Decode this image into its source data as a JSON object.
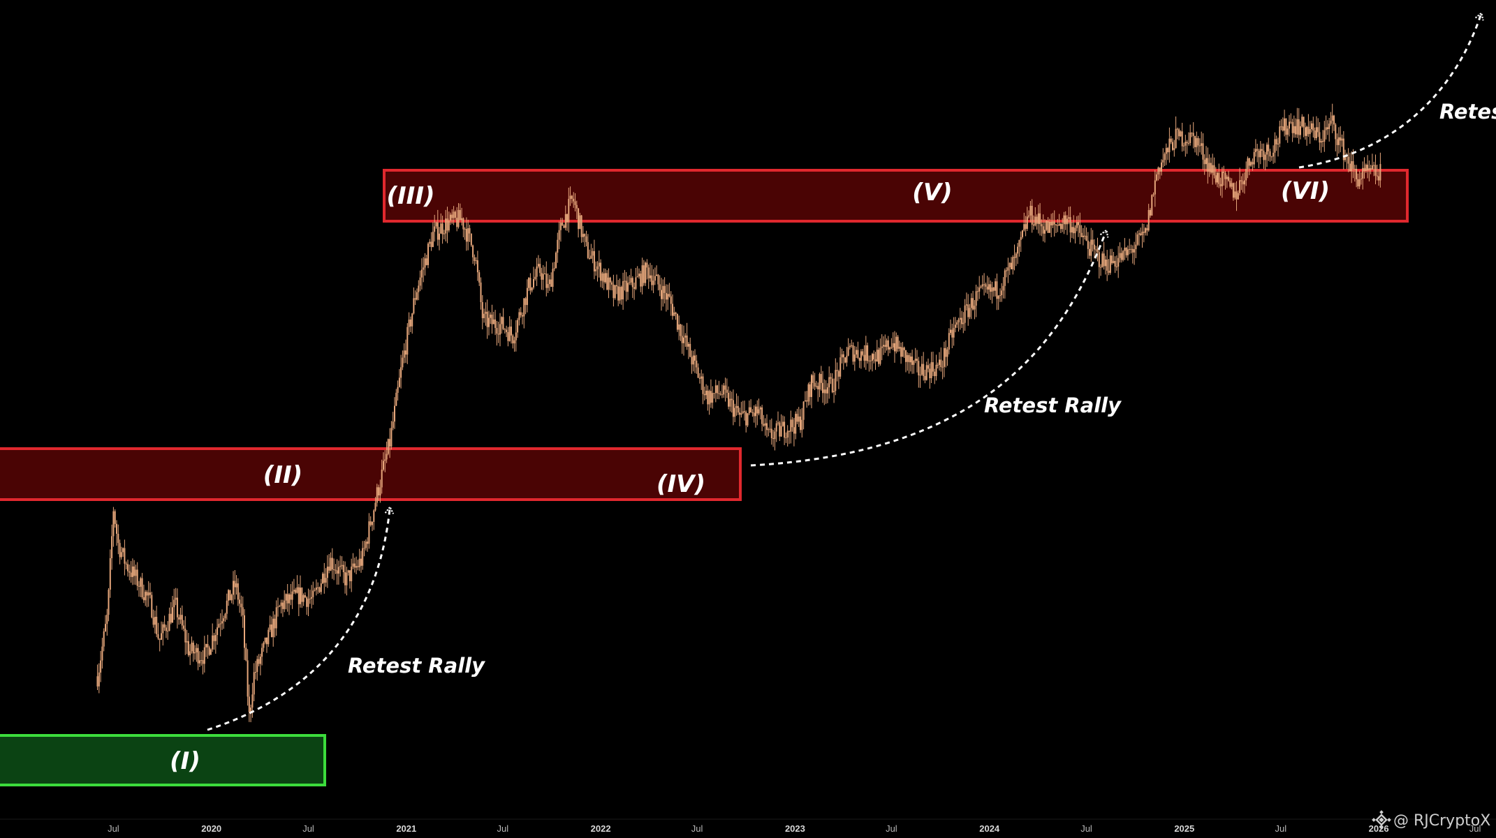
{
  "chart_data": {
    "type": "candlestick",
    "title": "",
    "xlabel": "",
    "ylabel": "",
    "colors": {
      "background": "#000000",
      "candle": "#e8a87c",
      "resistance_zone": "#e0282e",
      "support_zone": "#3cdc3c",
      "text": "#ffffff"
    },
    "x_ticks": [
      "Jul",
      "2020",
      "Jul",
      "2021",
      "Jul",
      "2022",
      "Jul",
      "2023",
      "Jul",
      "2024",
      "Jul",
      "2025",
      "Jul",
      "2026",
      "Jul"
    ],
    "zones": [
      {
        "kind": "support",
        "label": "(I)"
      },
      {
        "kind": "resistance",
        "label": "(II)"
      },
      {
        "kind": "resistance",
        "label": "(IV)"
      },
      {
        "kind": "resistance",
        "label": "(III)"
      },
      {
        "kind": "resistance",
        "label": "(V)"
      },
      {
        "kind": "resistance",
        "label": "(VI)"
      }
    ],
    "annotations": [
      "Retest Rally",
      "Retest Rally",
      "Retes"
    ],
    "price_path": [
      [
        "2019-06-01",
        0.1
      ],
      [
        "2019-06-20",
        0.22
      ],
      [
        "2019-07-01",
        0.43
      ],
      [
        "2019-07-10",
        0.36
      ],
      [
        "2019-07-25",
        0.32
      ],
      [
        "2019-08-20",
        0.28
      ],
      [
        "2019-09-10",
        0.24
      ],
      [
        "2019-09-25",
        0.17
      ],
      [
        "2019-10-25",
        0.24
      ],
      [
        "2019-11-20",
        0.15
      ],
      [
        "2019-12-20",
        0.14
      ],
      [
        "2020-01-20",
        0.22
      ],
      [
        "2020-02-15",
        0.28
      ],
      [
        "2020-02-28",
        0.22
      ],
      [
        "2020-03-12",
        0.02
      ],
      [
        "2020-03-20",
        0.1
      ],
      [
        "2020-04-15",
        0.17
      ],
      [
        "2020-05-10",
        0.24
      ],
      [
        "2020-06-15",
        0.26
      ],
      [
        "2020-07-10",
        0.25
      ],
      [
        "2020-08-10",
        0.33
      ],
      [
        "2020-09-10",
        0.29
      ],
      [
        "2020-10-10",
        0.33
      ],
      [
        "2020-11-05",
        0.45
      ],
      [
        "2020-12-01",
        0.56
      ],
      [
        "2020-12-25",
        0.72
      ],
      [
        "2021-01-20",
        0.86
      ],
      [
        "2021-02-20",
        0.97
      ],
      [
        "2021-03-15",
        0.99
      ],
      [
        "2021-04-15",
        1.0
      ],
      [
        "2021-05-10",
        0.93
      ],
      [
        "2021-05-25",
        0.8
      ],
      [
        "2021-07-01",
        0.79
      ],
      [
        "2021-07-20",
        0.77
      ],
      [
        "2021-08-20",
        0.87
      ],
      [
        "2021-09-10",
        0.9
      ],
      [
        "2021-09-25",
        0.86
      ],
      [
        "2021-10-20",
        0.99
      ],
      [
        "2021-11-10",
        1.04
      ],
      [
        "2021-12-05",
        0.94
      ],
      [
        "2022-01-05",
        0.89
      ],
      [
        "2022-01-25",
        0.85
      ],
      [
        "2022-03-01",
        0.87
      ],
      [
        "2022-03-30",
        0.9
      ],
      [
        "2022-05-10",
        0.84
      ],
      [
        "2022-06-15",
        0.74
      ],
      [
        "2022-07-20",
        0.65
      ],
      [
        "2022-08-15",
        0.66
      ],
      [
        "2022-09-20",
        0.61
      ],
      [
        "2022-10-25",
        0.62
      ],
      [
        "2022-11-10",
        0.57
      ],
      [
        "2022-12-15",
        0.59
      ],
      [
        "2023-01-10",
        0.6
      ],
      [
        "2023-02-01",
        0.68
      ],
      [
        "2023-03-10",
        0.67
      ],
      [
        "2023-04-10",
        0.74
      ],
      [
        "2023-06-10",
        0.73
      ],
      [
        "2023-07-01",
        0.76
      ],
      [
        "2023-08-20",
        0.7
      ],
      [
        "2023-10-01",
        0.71
      ],
      [
        "2023-10-25",
        0.78
      ],
      [
        "2023-12-10",
        0.85
      ],
      [
        "2024-01-15",
        0.86
      ],
      [
        "2024-02-20",
        0.92
      ],
      [
        "2024-03-15",
        1.01
      ],
      [
        "2024-04-20",
        0.98
      ],
      [
        "2024-05-25",
        1.0
      ],
      [
        "2024-06-20",
        0.97
      ],
      [
        "2024-07-10",
        0.94
      ],
      [
        "2024-08-05",
        0.91
      ],
      [
        "2024-09-15",
        0.93
      ],
      [
        "2024-10-20",
        0.97
      ],
      [
        "2024-11-12",
        1.1
      ],
      [
        "2024-12-15",
        1.16
      ],
      [
        "2025-01-20",
        1.16
      ],
      [
        "2025-02-25",
        1.09
      ],
      [
        "2025-04-08",
        1.05
      ],
      [
        "2025-05-10",
        1.13
      ],
      [
        "2025-06-15",
        1.14
      ],
      [
        "2025-07-15",
        1.19
      ],
      [
        "2025-08-15",
        1.18
      ],
      [
        "2025-09-15",
        1.16
      ],
      [
        "2025-10-06",
        1.19
      ],
      [
        "2025-10-20",
        1.15
      ],
      [
        "2025-11-20",
        1.08
      ],
      [
        "2025-12-15",
        1.09
      ],
      [
        "2026-01-05",
        1.09
      ]
    ]
  },
  "watermark": {
    "icon": "binance-logo-icon",
    "handle": "@ RJCryptoX"
  }
}
